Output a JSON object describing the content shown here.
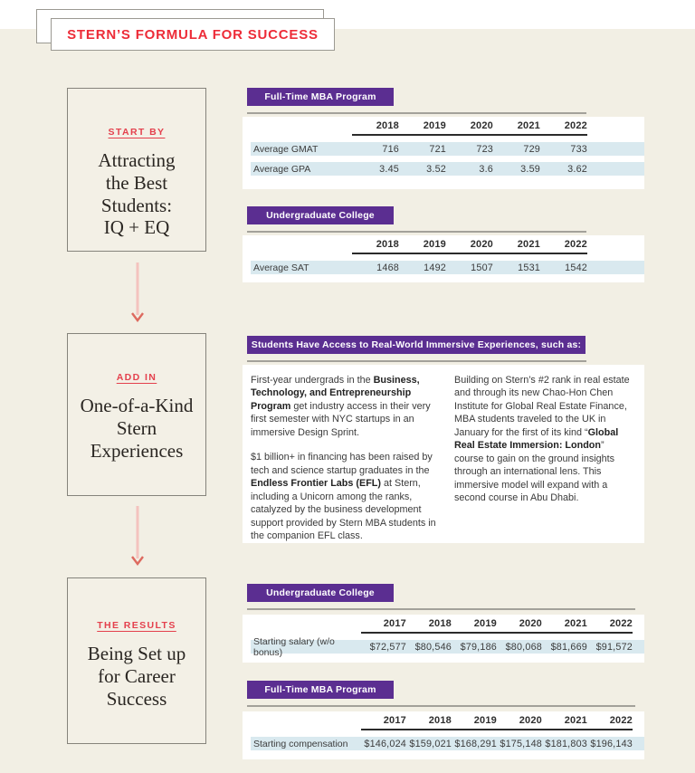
{
  "title": "STERN’S FORMULA FOR SUCCESS",
  "colors": {
    "background": "#f2efe4",
    "panel": "#ffffff",
    "accent_purple": "#5b2e91",
    "accent_red": "#ed2c38",
    "label_red": "#e4404d",
    "row_blue": "#d9e9ef"
  },
  "flow": {
    "steps": [
      {
        "label": "START BY",
        "heading": "Attracting\nthe Best\nStudents:\nIQ + EQ"
      },
      {
        "label": "ADD IN",
        "heading": "One-of-a-Kind\nStern\nExperiences"
      },
      {
        "label": "THE RESULTS",
        "heading": "Being Set up\nfor Career\nSuccess"
      }
    ]
  },
  "stat_sections": [
    {
      "badge": "Full-Time MBA Program",
      "years": [
        "2018",
        "2019",
        "2020",
        "2021",
        "2022"
      ],
      "rows": [
        {
          "label": "Average GMAT",
          "values": [
            "716",
            "721",
            "723",
            "729",
            "733"
          ]
        },
        {
          "label": "Average GPA",
          "values": [
            "3.45",
            "3.52",
            "3.6",
            "3.59",
            "3.62"
          ]
        }
      ]
    },
    {
      "badge": "Undergraduate College",
      "years": [
        "2018",
        "2019",
        "2020",
        "2021",
        "2022"
      ],
      "rows": [
        {
          "label": "Average SAT",
          "values": [
            "1468",
            "1492",
            "1507",
            "1531",
            "1542"
          ]
        }
      ]
    },
    {
      "badge": "Undergraduate College",
      "years": [
        "2017",
        "2018",
        "2019",
        "2020",
        "2021",
        "2022"
      ],
      "rows": [
        {
          "label": "Starting salary (w/o bonus)",
          "values": [
            "$72,577",
            "$80,546",
            "$79,186",
            "$80,068",
            "$81,669",
            "$91,572"
          ]
        }
      ]
    },
    {
      "badge": "Full-Time MBA Program",
      "years": [
        "2017",
        "2018",
        "2019",
        "2020",
        "2021",
        "2022"
      ],
      "rows": [
        {
          "label": "Starting compensation",
          "values": [
            "$146,024",
            "$159,021",
            "$168,291",
            "$175,148",
            "$181,803",
            "$196,143"
          ]
        }
      ]
    }
  ],
  "immersive": {
    "banner": "Students Have Access to Real-World Immersive Experiences, such as:",
    "left_paragraphs": [
      [
        {
          "t": "First-year undergrads in the ",
          "b": false
        },
        {
          "t": "Business, Technology, and Entrepreneurship Program",
          "b": true
        },
        {
          "t": " get industry access in their very first semester with NYC startups in an immersive Design Sprint.",
          "b": false
        }
      ],
      [
        {
          "t": "$1 billion+ in financing has been raised by tech and science startup graduates in the ",
          "b": false
        },
        {
          "t": "Endless Frontier Labs (EFL)",
          "b": true
        },
        {
          "t": " at Stern, including a Unicorn among the ranks, catalyzed by the business development support provided by Stern MBA students in the companion EFL class.",
          "b": false
        }
      ]
    ],
    "right_paragraphs": [
      [
        {
          "t": "Building on Stern’s #2 rank in real estate and through its new Chao-Hon Chen Institute for Global Real Estate Finance, MBA students traveled to the UK in January for the first of its kind “",
          "b": false
        },
        {
          "t": "Global Real Estate Immersion: London",
          "b": true
        },
        {
          "t": "” course to gain on the ground insights through an international lens. This immersive model will expand with a second course in Abu Dhabi.",
          "b": false
        }
      ]
    ]
  }
}
